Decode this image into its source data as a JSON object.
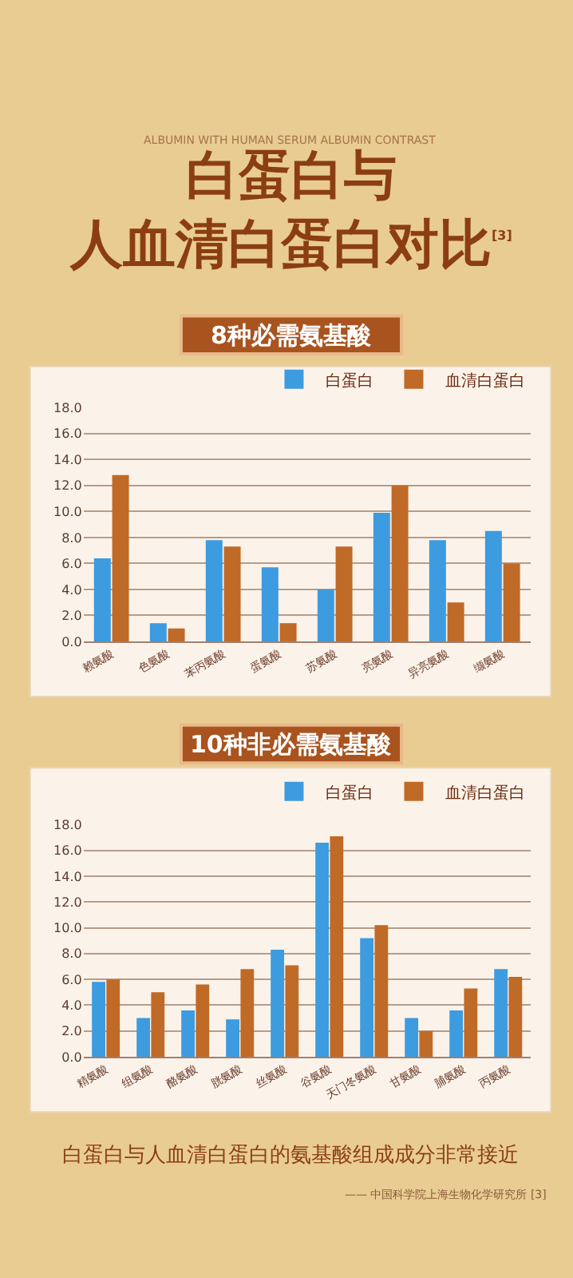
{
  "chart_data": [
    {
      "type": "bar",
      "title": "白蛋白与人血清白蛋白对比$^{[3]}$",
      "subtitle": "ALBUMIN WITH HUMAN SERUM ALBUMIN CONTRAST",
      "annotations": [
        "8种必需氨基酸"
      ],
      "categories": [
        "赖氨酸",
        "色氨酸",
        "苯丙氨酸",
        "蛋氨酸",
        "苏氨酸",
        "亮氨酸",
        "异亮氨酸",
        "缬氨酸"
      ],
      "series": [
        {
          "name": "白蛋白",
          "color": "#3d9be0",
          "values": [
            6.4,
            1.4,
            7.8,
            5.7,
            4.0,
            9.9,
            7.8,
            8.5
          ]
        },
        {
          "name": "血清白蛋白",
          "color": "#c06a28",
          "values": [
            12.8,
            1.0,
            7.3,
            1.4,
            7.3,
            12.0,
            3.0,
            6.0
          ]
        }
      ],
      "ylim": [
        0,
        18
      ],
      "yticks": [
        {
          "value": 0,
          "label": "0.0"
        },
        {
          "value": 2,
          "label": "2.0"
        },
        {
          "value": 4,
          "label": "4.0"
        },
        {
          "value": 6,
          "label": "6.0"
        },
        {
          "value": 8,
          "label": "8.0"
        },
        {
          "value": 10,
          "label": "10.0"
        },
        {
          "value": 12,
          "label": "12.0"
        },
        {
          "value": 14,
          "label": "14.0"
        },
        {
          "value": 16,
          "label": "16.0"
        },
        {
          "value": 18,
          "label": "18.0"
        }
      ],
      "grid": "y",
      "legend": "top right"
    },
    {
      "type": "bar",
      "title": "10种非必需氨基酸",
      "annotations": [
        "白蛋白与人血清白蛋白的氨基酸组成成分非常接近",
        "—— 中国科学院上海生物化学研究所 [3]"
      ],
      "categories": [
        "精氨酸",
        "组氨酸",
        "酪氨酸",
        "胱氨酸",
        "丝氨酸",
        "谷氨酸",
        "天门冬氨酸",
        "甘氨酸",
        "脯氨酸",
        "丙氨酸"
      ],
      "series": [
        {
          "name": "白蛋白",
          "color": "#3d9be0",
          "values": [
            5.8,
            3.0,
            3.6,
            2.9,
            8.3,
            16.6,
            9.2,
            3.0,
            3.6,
            6.8
          ]
        },
        {
          "name": "血清白蛋白",
          "color": "#c06a28",
          "values": [
            6.0,
            5.0,
            5.6,
            6.8,
            7.1,
            17.1,
            10.2,
            2.0,
            5.3,
            6.2
          ]
        }
      ],
      "ylim": [
        0,
        18
      ],
      "yticks": [
        {
          "value": 0,
          "label": "0.0"
        },
        {
          "value": 2,
          "label": "2.0"
        },
        {
          "value": 4,
          "label": "4.0"
        },
        {
          "value": 6,
          "label": "6.0"
        },
        {
          "value": 8,
          "label": "8.0"
        },
        {
          "value": 10,
          "label": "10.0"
        },
        {
          "value": 12,
          "label": "12.0"
        },
        {
          "value": 14,
          "label": "14.0"
        },
        {
          "value": 16,
          "label": "16.0"
        },
        {
          "value": 18,
          "label": "18.0"
        }
      ],
      "grid": "y",
      "legend": "top right"
    }
  ]
}
